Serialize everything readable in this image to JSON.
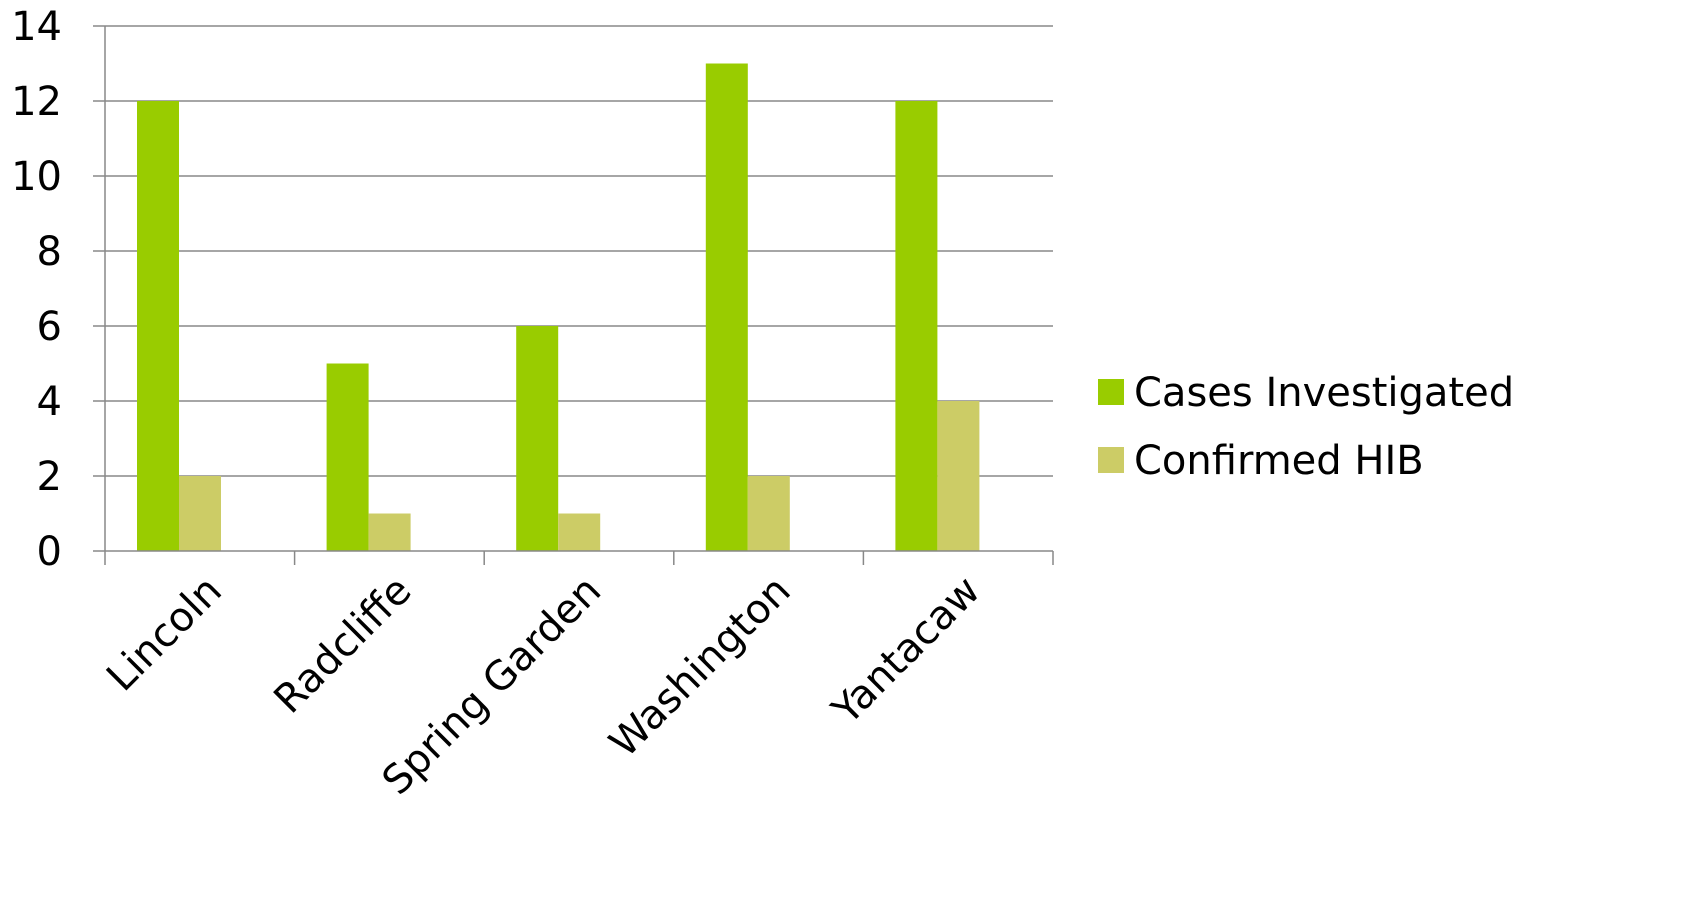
{
  "chart_data": {
    "type": "bar",
    "title": "",
    "xlabel": "",
    "ylabel": "",
    "categories": [
      "Lincoln",
      "Radcliffe",
      "Spring Garden",
      "Washington",
      "Yantacaw"
    ],
    "series": [
      {
        "name": "Cases Investigated",
        "values": [
          12,
          5,
          6,
          13,
          12
        ],
        "color": "#99CC00"
      },
      {
        "name": "Confirmed HIB",
        "values": [
          2,
          1,
          1,
          2,
          4
        ],
        "color": "#CCCC66"
      }
    ],
    "ylim": [
      0,
      14
    ],
    "yticks": [
      0,
      2,
      4,
      6,
      8,
      10,
      12,
      14
    ],
    "grid": true,
    "legend_position": "right",
    "gridline_color": "#888888",
    "axis_color": "#888888"
  }
}
